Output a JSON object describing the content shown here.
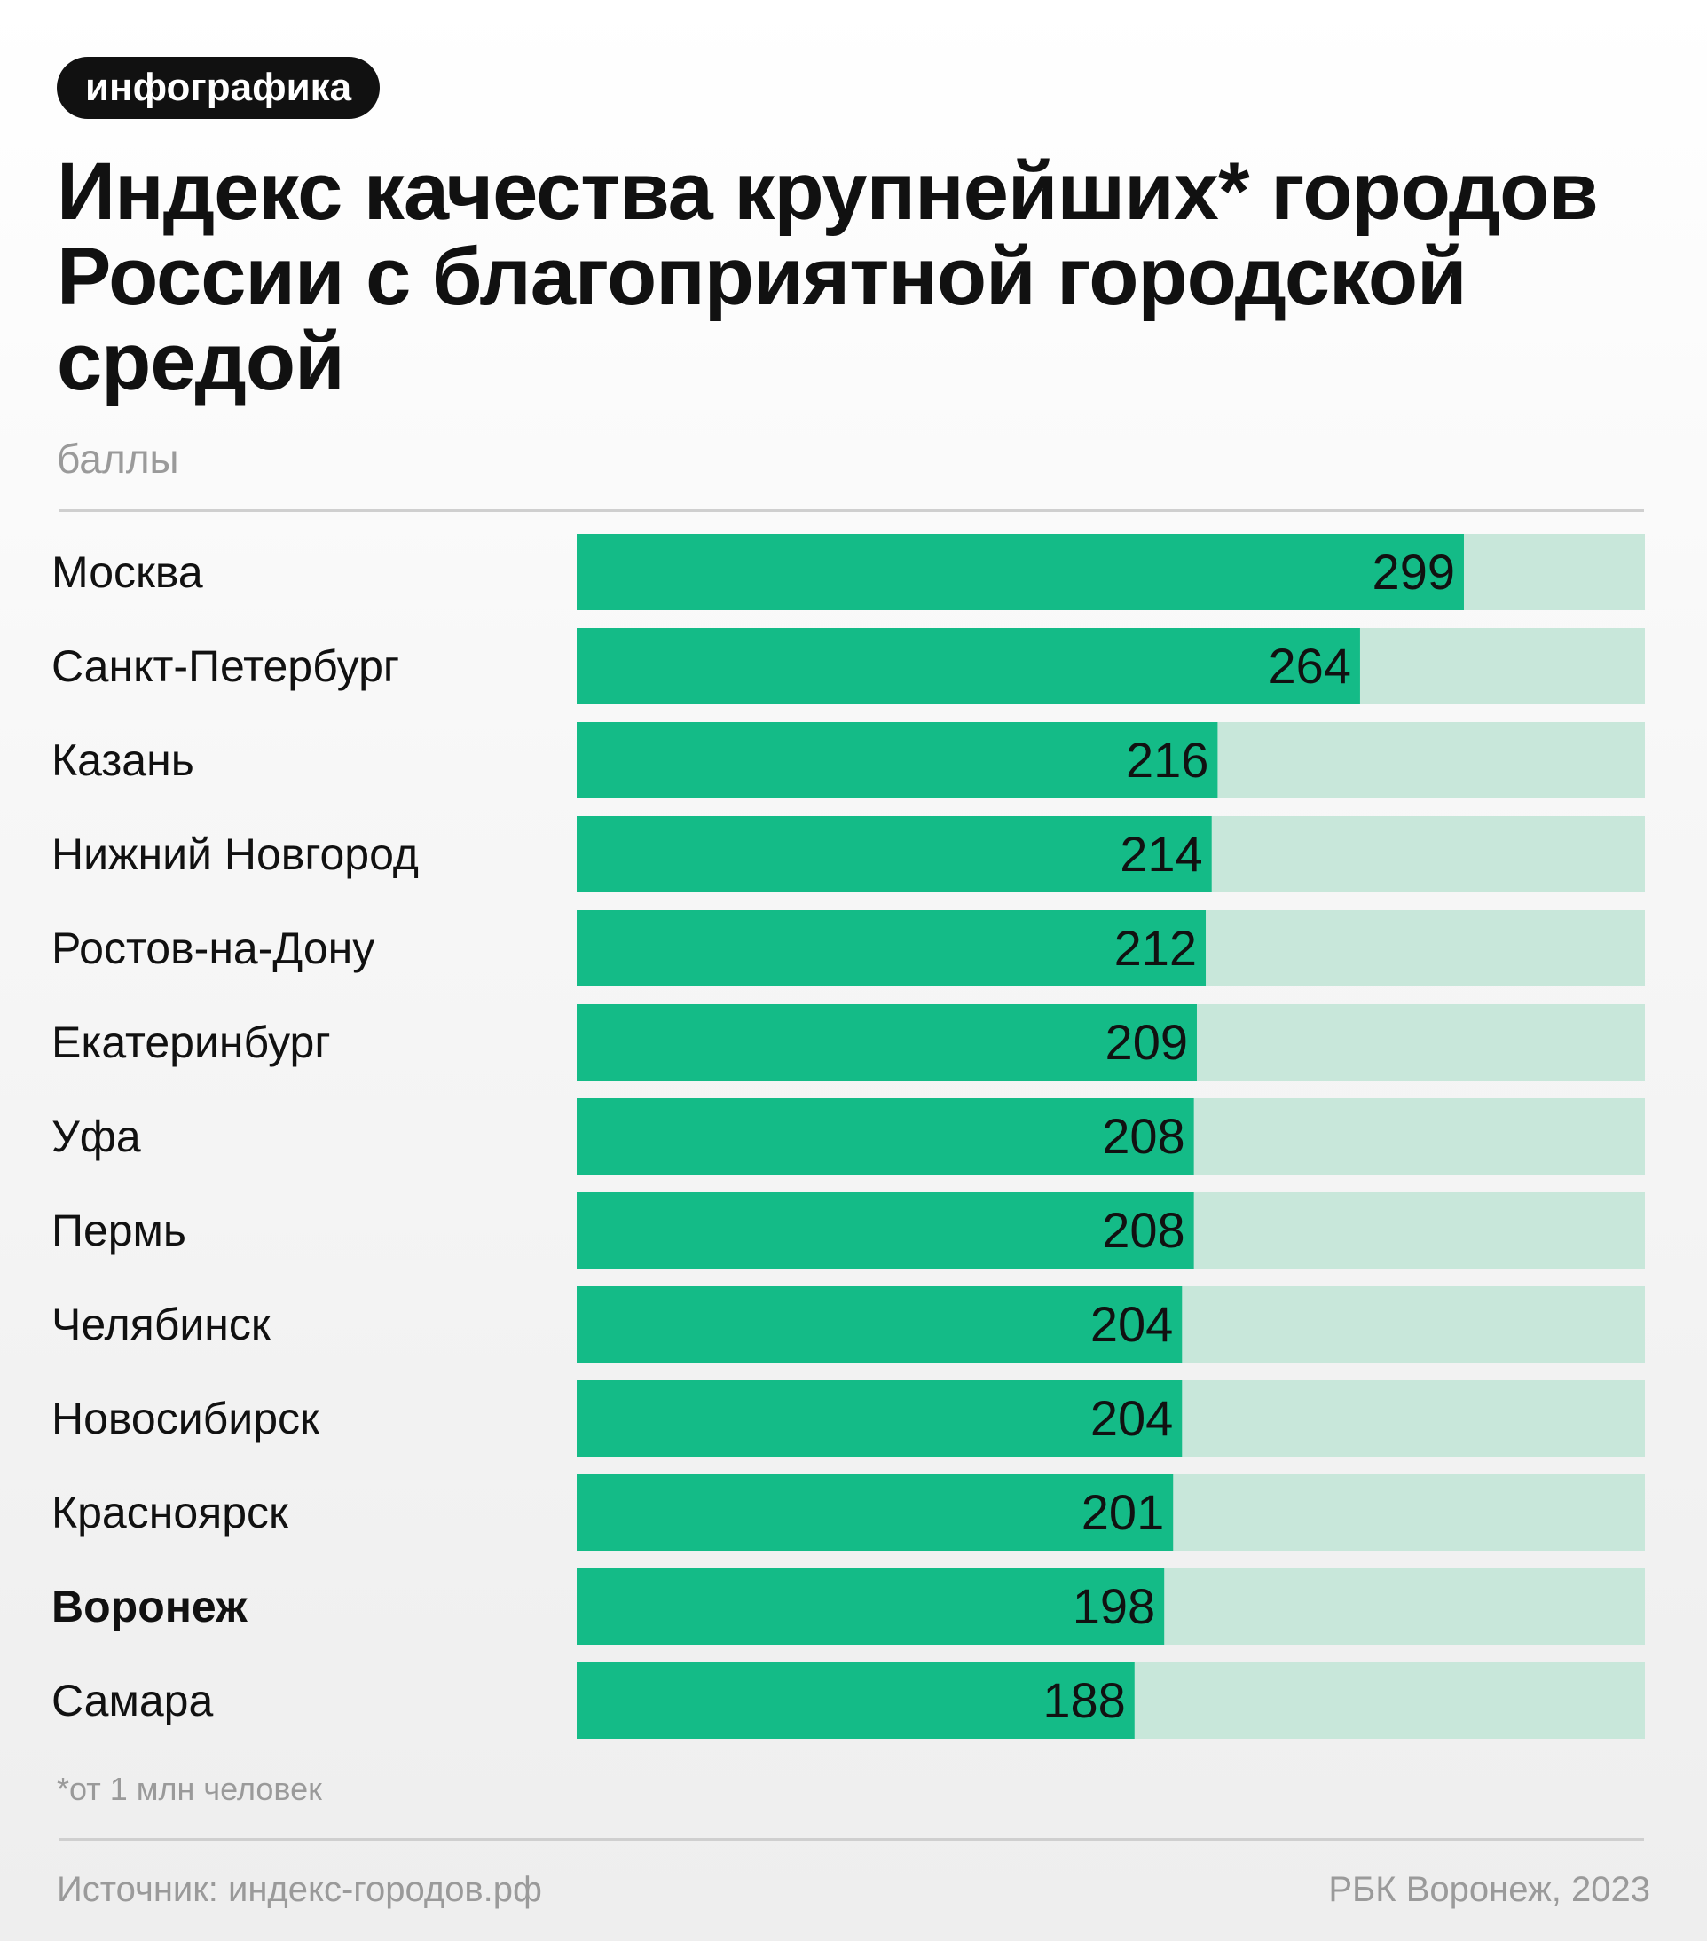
{
  "badge": "инфографика",
  "title": "Индекс качества крупнейших* городов России с благоприятной городской средой",
  "units_label": "баллы",
  "footnote": "*от 1 млн человек",
  "source": "Источник: индекс-городов.рф",
  "credit": "РБК Воронеж, 2023",
  "colors": {
    "bar": "#14bb87",
    "track": "#c8e7da",
    "text": "#111111",
    "muted": "#9a9a9a"
  },
  "chart_data": {
    "type": "bar",
    "orientation": "horizontal",
    "categories": [
      "Москва",
      "Санкт-Петербург",
      "Казань",
      "Нижний Новгород",
      "Ростов-на-Дону",
      "Екатеринбург",
      "Уфа",
      "Пермь",
      "Челябинск",
      "Новосибирск",
      "Красноярск",
      "Воронеж",
      "Самара"
    ],
    "values": [
      299,
      264,
      216,
      214,
      212,
      209,
      208,
      208,
      204,
      204,
      201,
      198,
      188
    ],
    "highlight": "Воронеж",
    "xlim": [
      0,
      360
    ],
    "data_labels": true,
    "grid": false,
    "legend": "none"
  }
}
